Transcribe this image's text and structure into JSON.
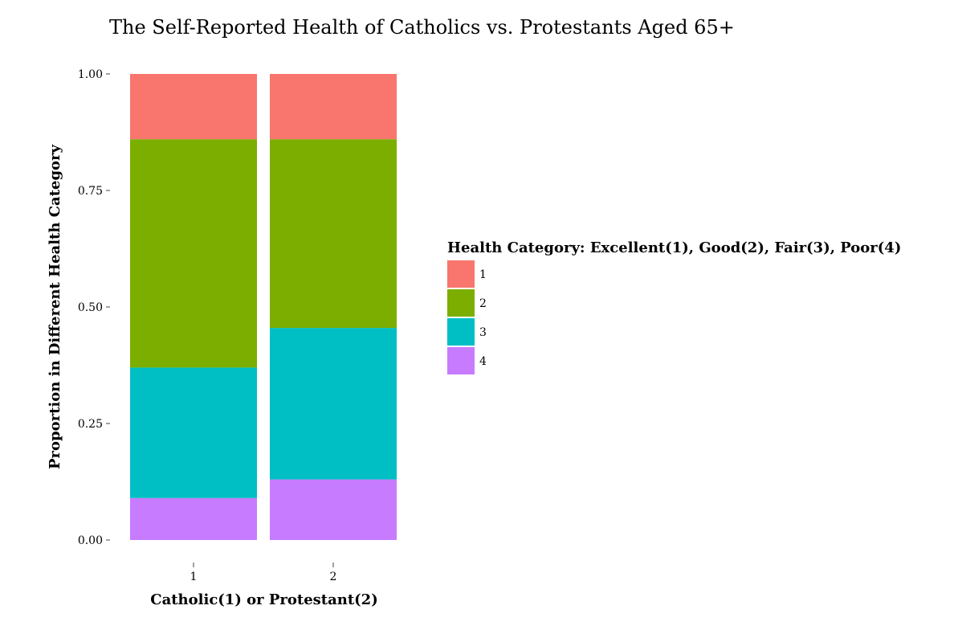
{
  "chart_data": {
    "type": "bar",
    "stacked": true,
    "title": "The Self-Reported Health of Catholics vs. Protestants Aged 65+",
    "xlabel": "Catholic(1) or Protestant(2)",
    "ylabel": "Proportion in Different Health Category",
    "categories": [
      "1",
      "2"
    ],
    "ylim": [
      0,
      1
    ],
    "yticks": [
      "0.00",
      "0.25",
      "0.50",
      "0.75",
      "1.00"
    ],
    "grid": false,
    "legend": {
      "title": "Health Category: Excellent(1), Good(2), Fair(3), Poor(4)",
      "position": "right"
    },
    "stack_order_bottom_to_top": [
      "4",
      "3",
      "2",
      "1"
    ],
    "series": [
      {
        "name": "1",
        "color": "#F8766D",
        "values": [
          0.14,
          0.14
        ]
      },
      {
        "name": "2",
        "color": "#7CAE00",
        "values": [
          0.49,
          0.405
        ]
      },
      {
        "name": "3",
        "color": "#00BFC4",
        "values": [
          0.28,
          0.325
        ]
      },
      {
        "name": "4",
        "color": "#C77CFF",
        "values": [
          0.09,
          0.13
        ]
      }
    ]
  }
}
